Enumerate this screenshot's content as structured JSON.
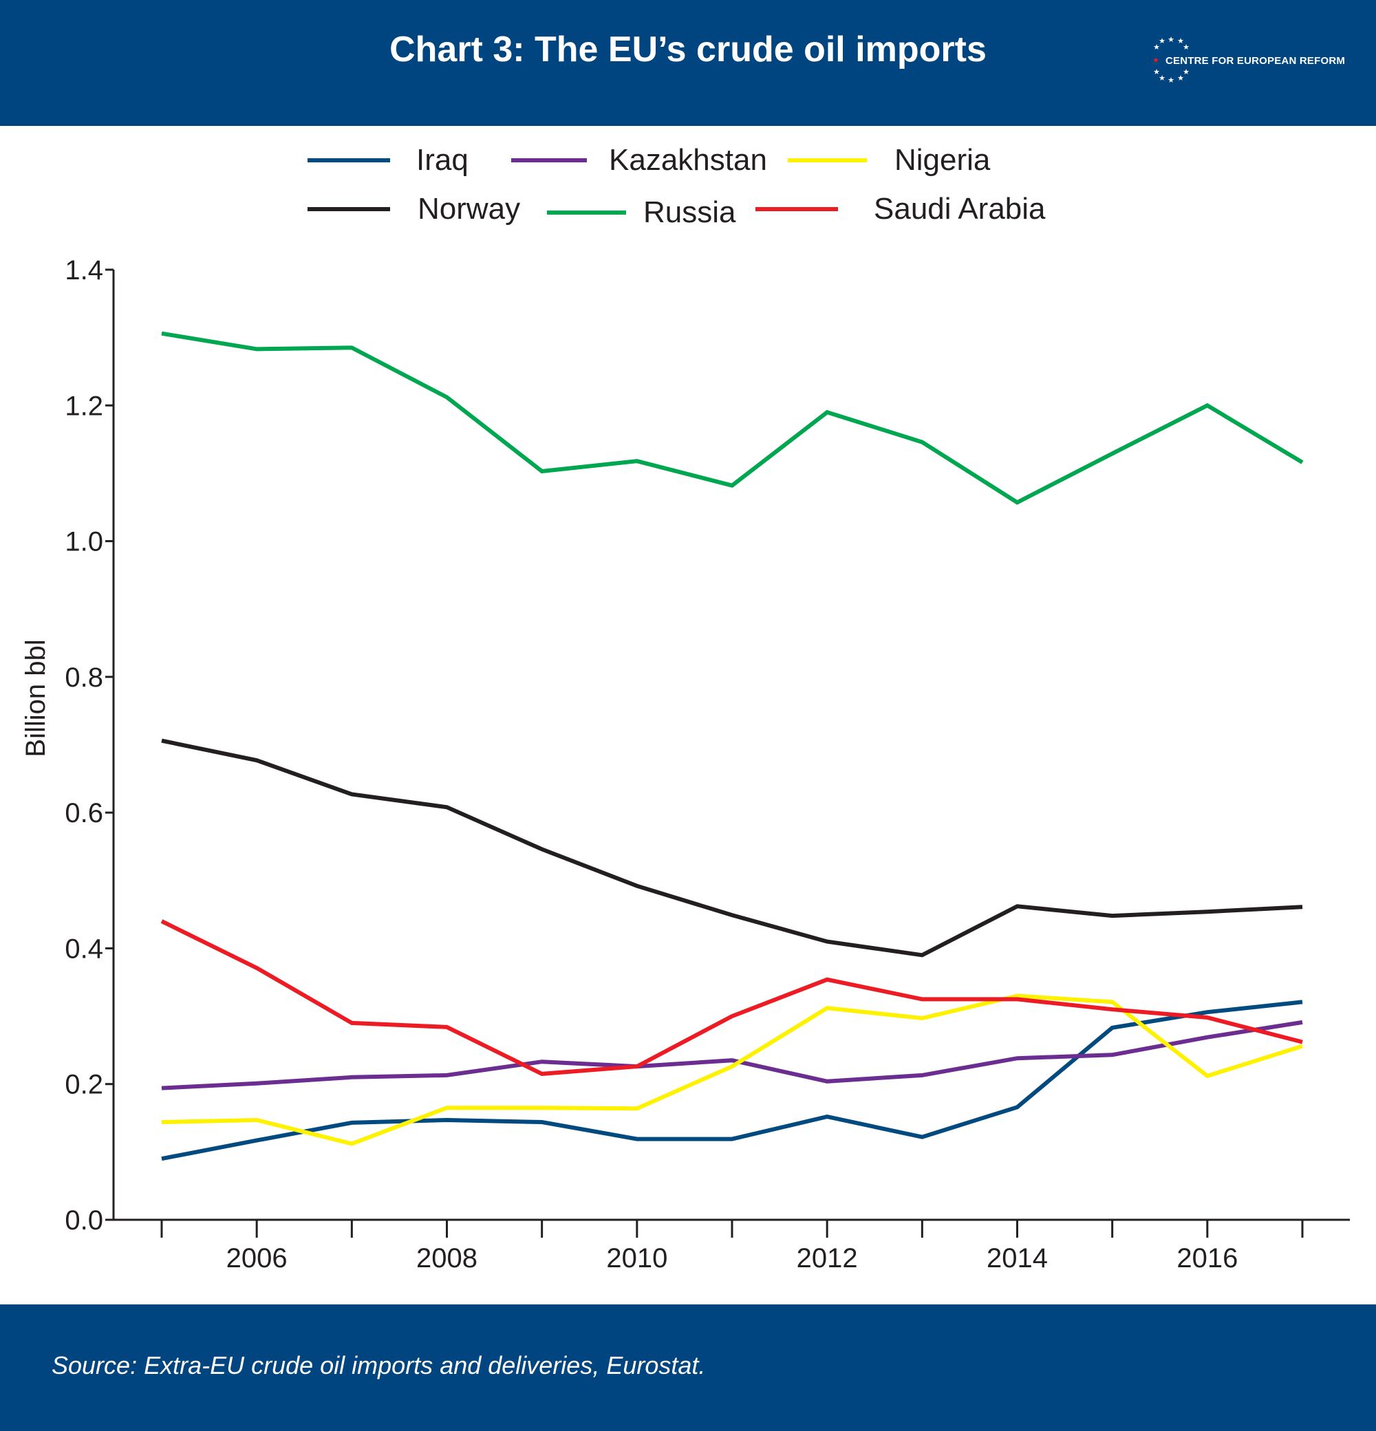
{
  "header": {
    "title": "Chart 3: The EU’s crude oil imports",
    "logo_text": "CENTRE FOR EUROPEAN REFORM",
    "background": "#00457f"
  },
  "footer": {
    "source": "Source:  Extra-EU crude oil imports and deliveries, Eurostat."
  },
  "chart_data": {
    "type": "line",
    "title": "Chart 3: The EU’s crude oil imports",
    "xlabel": "",
    "ylabel": "Billion bbl",
    "x": [
      2005,
      2006,
      2007,
      2008,
      2009,
      2010,
      2011,
      2012,
      2013,
      2014,
      2015,
      2016,
      2017
    ],
    "xticks": [
      "2006",
      "2008",
      "2010",
      "2012",
      "2014",
      "2016"
    ],
    "yticks": [
      "0.0",
      "0.2",
      "0.4",
      "0.6",
      "0.8",
      "1.0",
      "1.2",
      "1.4"
    ],
    "ylim": [
      0,
      1.4
    ],
    "xlim": [
      2004.5,
      2017.5
    ],
    "grid": false,
    "legend_position": "top",
    "series": [
      {
        "name": "Iraq",
        "color": "#004a80",
        "values": [
          0.09,
          0.117,
          0.143,
          0.147,
          0.144,
          0.119,
          0.119,
          0.152,
          0.122,
          0.166,
          0.283,
          0.306,
          0.321
        ]
      },
      {
        "name": "Kazakhstan",
        "color": "#6b2d90",
        "values": [
          0.194,
          0.201,
          0.21,
          0.213,
          0.233,
          0.226,
          0.235,
          0.204,
          0.213,
          0.238,
          0.243,
          0.269,
          0.291
        ]
      },
      {
        "name": "Nigeria",
        "color": "#fff200",
        "values": [
          0.144,
          0.147,
          0.112,
          0.165,
          0.165,
          0.164,
          0.226,
          0.312,
          0.297,
          0.33,
          0.321,
          0.212,
          0.256
        ]
      },
      {
        "name": "Norway",
        "color": "#231f20",
        "values": [
          0.706,
          0.677,
          0.627,
          0.608,
          0.546,
          0.492,
          0.449,
          0.41,
          0.39,
          0.462,
          0.448,
          0.454,
          0.461
        ]
      },
      {
        "name": "Russia",
        "color": "#00a650",
        "values": [
          1.306,
          1.283,
          1.285,
          1.212,
          1.103,
          1.118,
          1.082,
          1.19,
          1.146,
          1.057,
          1.129,
          1.2,
          1.116
        ]
      },
      {
        "name": "Saudi Arabia",
        "color": "#ed1c24",
        "values": [
          0.44,
          0.371,
          0.29,
          0.284,
          0.215,
          0.226,
          0.3,
          0.354,
          0.325,
          0.325,
          0.31,
          0.298,
          0.262
        ]
      }
    ]
  }
}
